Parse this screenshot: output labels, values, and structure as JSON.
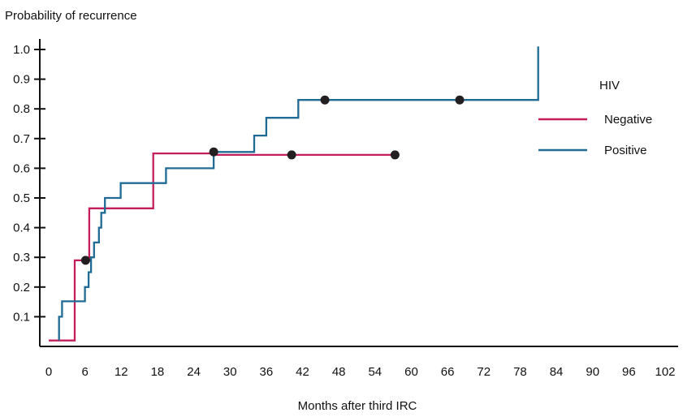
{
  "chart_data": {
    "type": "line",
    "subtype": "step",
    "title": "",
    "ylabel": "Probability of recurrence",
    "xlabel": "Months after third IRC",
    "xlim": [
      0,
      102
    ],
    "ylim": [
      0,
      1.0
    ],
    "x_ticks": [
      0,
      6,
      12,
      18,
      24,
      30,
      36,
      42,
      48,
      54,
      60,
      66,
      72,
      78,
      84,
      90,
      96,
      102
    ],
    "x_tick_labels": [
      "0",
      "6",
      "12",
      "18",
      "24",
      "30",
      "36",
      "42",
      "48",
      "54",
      "60",
      "66",
      "72",
      "78",
      "84",
      "90",
      "96",
      "102"
    ],
    "y_ticks": [
      0.1,
      0.2,
      0.3,
      0.4,
      0.5,
      0.6,
      0.7,
      0.8,
      0.9,
      1.0
    ],
    "y_tick_labels": [
      "0.1",
      "0.2",
      "0.3",
      "0.4",
      "0.5",
      "0.6",
      "0.7",
      "0.8",
      "0.9",
      "1.0"
    ],
    "grid": false,
    "legend": {
      "title": "HIV",
      "position": "right"
    },
    "censor_marker_color": "#231f20",
    "series": [
      {
        "name": "Negative",
        "color": "#c41e5a",
        "points": [
          [
            0,
            0.02
          ],
          [
            4.3,
            0.02
          ],
          [
            4.3,
            0.29
          ],
          [
            6.7,
            0.29
          ],
          [
            6.7,
            0.465
          ],
          [
            17.3,
            0.465
          ],
          [
            17.3,
            0.65
          ],
          [
            27.3,
            0.65
          ],
          [
            27.3,
            0.645
          ],
          [
            57.3,
            0.645
          ]
        ],
        "censored": [
          [
            6.1,
            0.29
          ],
          [
            27.3,
            0.655
          ],
          [
            40.2,
            0.645
          ],
          [
            57.3,
            0.645
          ]
        ]
      },
      {
        "name": "Positive",
        "color": "#1f6b96",
        "points": [
          [
            1.7,
            0.02
          ],
          [
            1.7,
            0.1
          ],
          [
            2.2,
            0.1
          ],
          [
            2.2,
            0.152
          ],
          [
            6.0,
            0.152
          ],
          [
            6.0,
            0.2
          ],
          [
            6.6,
            0.2
          ],
          [
            6.6,
            0.25
          ],
          [
            7.0,
            0.25
          ],
          [
            7.0,
            0.3
          ],
          [
            7.5,
            0.3
          ],
          [
            7.5,
            0.35
          ],
          [
            8.3,
            0.35
          ],
          [
            8.3,
            0.4
          ],
          [
            8.7,
            0.4
          ],
          [
            8.7,
            0.45
          ],
          [
            9.3,
            0.45
          ],
          [
            9.3,
            0.5
          ],
          [
            11.9,
            0.5
          ],
          [
            11.9,
            0.55
          ],
          [
            19.4,
            0.55
          ],
          [
            19.4,
            0.6
          ],
          [
            27.3,
            0.6
          ],
          [
            27.3,
            0.655
          ],
          [
            34.0,
            0.655
          ],
          [
            34.0,
            0.71
          ],
          [
            36.0,
            0.71
          ],
          [
            36.0,
            0.77
          ],
          [
            41.3,
            0.77
          ],
          [
            41.3,
            0.83
          ],
          [
            81.0,
            0.83
          ],
          [
            81.0,
            1.01
          ]
        ],
        "censored": [
          [
            45.7,
            0.83
          ],
          [
            68.0,
            0.83
          ]
        ]
      }
    ]
  }
}
